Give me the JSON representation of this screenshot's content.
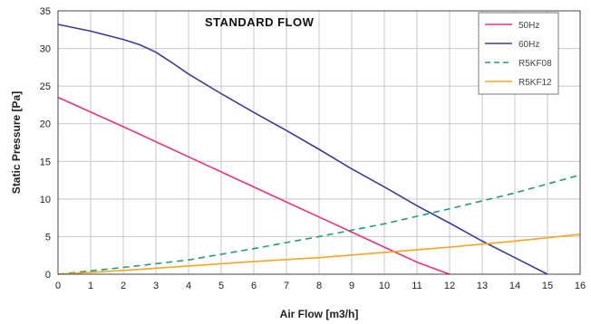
{
  "chart_data": {
    "type": "line",
    "title": "STANDARD FLOW",
    "xlabel": "Air Flow [m3/h]",
    "ylabel": "Static Pressure [Pa]",
    "xlim": [
      0,
      16
    ],
    "ylim": [
      0,
      35
    ],
    "xticks": [
      "0",
      "1",
      "2",
      "3",
      "4",
      "5",
      "6",
      "7",
      "8",
      "9",
      "10",
      "11",
      "12",
      "13",
      "14",
      "15",
      "16"
    ],
    "yticks": [
      "0",
      "5",
      "10",
      "15",
      "20",
      "25",
      "30",
      "35"
    ],
    "grid": true,
    "legend_position": "top-right",
    "series": [
      {
        "name": "50Hz",
        "color": "#ee2f7a",
        "dash": "solid",
        "x": [
          0,
          2,
          4,
          6,
          8,
          10,
          11,
          12
        ],
        "y": [
          23.5,
          19.6,
          15.6,
          11.6,
          7.6,
          3.6,
          1.6,
          0
        ]
      },
      {
        "name": "60Hz",
        "color": "#3b3b9a",
        "dash": "solid",
        "x": [
          0,
          1,
          2,
          2.5,
          3,
          3.5,
          4,
          5,
          6,
          7,
          8,
          9,
          10,
          11,
          12,
          13,
          14,
          15
        ],
        "y": [
          33.2,
          32.3,
          31.2,
          30.5,
          29.5,
          28.1,
          26.6,
          24.0,
          21.5,
          19.1,
          16.6,
          14.0,
          11.6,
          9.1,
          6.8,
          4.4,
          2.2,
          0
        ]
      },
      {
        "name": "R5KF08",
        "color": "#1f9e74",
        "dash": "dashed",
        "x": [
          0,
          2,
          4,
          6,
          8,
          10,
          12,
          14,
          16
        ],
        "y": [
          0,
          0.9,
          1.9,
          3.4,
          5.0,
          6.7,
          8.7,
          10.8,
          13.2
        ]
      },
      {
        "name": "R5KF12",
        "color": "#f5a623",
        "dash": "solid",
        "x": [
          0,
          2,
          4,
          6,
          8,
          10,
          12,
          14,
          16
        ],
        "y": [
          0,
          0.5,
          1.1,
          1.7,
          2.2,
          2.9,
          3.6,
          4.4,
          5.3
        ]
      }
    ]
  }
}
